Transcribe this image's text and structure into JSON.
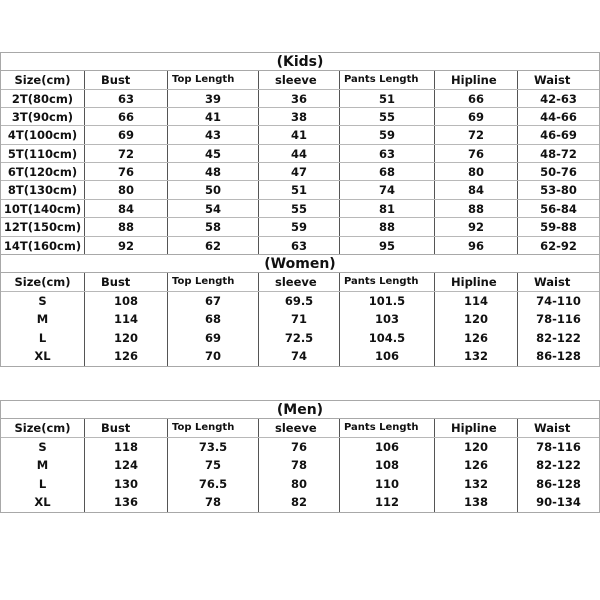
{
  "headers": [
    "Size(cm)",
    "Bust",
    "Top Length",
    "sleeve",
    "Pants Length",
    "Hipline",
    "Waist"
  ],
  "tables": [
    {
      "title": "(Kids)",
      "rows": [
        [
          "2T(80cm)",
          "63",
          "39",
          "36",
          "51",
          "66",
          "42-63"
        ],
        [
          "3T(90cm)",
          "66",
          "41",
          "38",
          "55",
          "69",
          "44-66"
        ],
        [
          "4T(100cm)",
          "69",
          "43",
          "41",
          "59",
          "72",
          "46-69"
        ],
        [
          "5T(110cm)",
          "72",
          "45",
          "44",
          "63",
          "76",
          "48-72"
        ],
        [
          "6T(120cm)",
          "76",
          "48",
          "47",
          "68",
          "80",
          "50-76"
        ],
        [
          "8T(130cm)",
          "80",
          "50",
          "51",
          "74",
          "84",
          "53-80"
        ],
        [
          "10T(140cm)",
          "84",
          "54",
          "55",
          "81",
          "88",
          "56-84"
        ],
        [
          "12T(150cm)",
          "88",
          "58",
          "59",
          "88",
          "92",
          "59-88"
        ],
        [
          "14T(160cm)",
          "92",
          "62",
          "63",
          "95",
          "96",
          "62-92"
        ]
      ]
    },
    {
      "title": "(Women)",
      "rows": [
        [
          "S",
          "108",
          "67",
          "69.5",
          "101.5",
          "114",
          "74-110"
        ],
        [
          "M",
          "114",
          "68",
          "71",
          "103",
          "120",
          "78-116"
        ],
        [
          "L",
          "120",
          "69",
          "72.5",
          "104.5",
          "126",
          "82-122"
        ],
        [
          "XL",
          "126",
          "70",
          "74",
          "106",
          "132",
          "86-128"
        ]
      ]
    },
    {
      "title": "(Men)",
      "rows": [
        [
          "S",
          "118",
          "73.5",
          "76",
          "106",
          "120",
          "78-116"
        ],
        [
          "M",
          "124",
          "75",
          "78",
          "108",
          "126",
          "82-122"
        ],
        [
          "L",
          "130",
          "76.5",
          "80",
          "110",
          "132",
          "86-128"
        ],
        [
          "XL",
          "136",
          "78",
          "82",
          "112",
          "138",
          "90-134"
        ]
      ]
    }
  ]
}
